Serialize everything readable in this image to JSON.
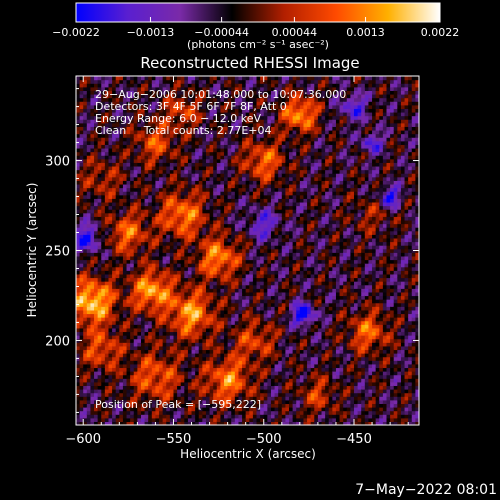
{
  "chart_data": {
    "type": "heatmap",
    "title": "Reconstructed RHESSI Image",
    "xlabel": "Heliocentric X (arcsec)",
    "ylabel": "Heliocentric Y (arcsec)",
    "xlim": [
      -604,
      -414
    ],
    "ylim": [
      153,
      347
    ],
    "x_ticks": [
      -600,
      -550,
      -500,
      -450
    ],
    "x_tick_labels": [
      "−600",
      "−550",
      "−500",
      "−450"
    ],
    "y_ticks": [
      200,
      250,
      300
    ],
    "y_tick_labels": [
      "200",
      "250",
      "300"
    ],
    "colorbar": {
      "range": [
        -0.0022,
        0.0022
      ],
      "ticks": [
        -0.0022,
        -0.0013,
        -0.00044,
        0.00044,
        0.0013,
        0.0022
      ],
      "tick_labels": [
        "−0.0022",
        "−0.0013",
        "−0.00044",
        "0.00044",
        "0.0013",
        "0.0022"
      ],
      "unit_label": "(photons cm⁻² s⁻¹ asec⁻²)",
      "colormap": [
        "#0000ff",
        "#5a1fd0",
        "#7a2aa8",
        "#000000",
        "#b21f00",
        "#ff4a00",
        "#ffb000",
        "#ffffff"
      ]
    },
    "annotations": [
      "29−Aug−2006 10:01:48.000 to 10:07:36.000",
      "Detectors: 3F 4F 5F 6F 7F 8F, Att 0",
      "Energy Range: 6.0 − 12.0 keV",
      "Clean     Total counts: 2.77E+04"
    ],
    "peak_label": "Position of Peak = [−595,222]",
    "peak": {
      "x": -595,
      "y": 222
    },
    "hotspots": [
      {
        "x": -595,
        "y": 222,
        "v": 0.0022,
        "r": 9
      },
      {
        "x": -562,
        "y": 228,
        "v": 0.0019,
        "r": 8
      },
      {
        "x": -540,
        "y": 215,
        "v": 0.0018,
        "r": 9
      },
      {
        "x": -525,
        "y": 246,
        "v": 0.0017,
        "r": 8
      },
      {
        "x": -545,
        "y": 270,
        "v": 0.0016,
        "r": 9
      },
      {
        "x": -575,
        "y": 260,
        "v": 0.0014,
        "r": 8
      },
      {
        "x": -520,
        "y": 178,
        "v": 0.0016,
        "r": 9
      },
      {
        "x": -560,
        "y": 180,
        "v": 0.0013,
        "r": 10
      },
      {
        "x": -590,
        "y": 195,
        "v": 0.0012,
        "r": 8
      },
      {
        "x": -500,
        "y": 300,
        "v": 0.0014,
        "r": 8
      },
      {
        "x": -480,
        "y": 326,
        "v": 0.0018,
        "r": 7
      },
      {
        "x": -560,
        "y": 310,
        "v": 0.0012,
        "r": 8
      },
      {
        "x": -545,
        "y": 328,
        "v": 0.0011,
        "r": 7
      },
      {
        "x": -442,
        "y": 205,
        "v": 0.0014,
        "r": 8
      },
      {
        "x": -470,
        "y": 170,
        "v": 0.001,
        "r": 7
      },
      {
        "x": -590,
        "y": 290,
        "v": 0.0008,
        "r": 8
      },
      {
        "x": -505,
        "y": 200,
        "v": 0.0011,
        "r": 8
      },
      {
        "x": -440,
        "y": 270,
        "v": 0.0006,
        "r": 8
      }
    ],
    "coldspots": [
      {
        "x": -478,
        "y": 215,
        "v": -0.0022,
        "r": 4
      },
      {
        "x": -430,
        "y": 280,
        "v": -0.0017,
        "r": 4
      },
      {
        "x": -598,
        "y": 257,
        "v": -0.0017,
        "r": 5
      },
      {
        "x": -450,
        "y": 330,
        "v": -0.0013,
        "r": 5
      },
      {
        "x": -440,
        "y": 310,
        "v": -0.0013,
        "r": 4
      },
      {
        "x": -500,
        "y": 265,
        "v": -0.0011,
        "r": 6
      }
    ]
  },
  "footer": {
    "timestamp": "7−May−2022 08:01"
  }
}
